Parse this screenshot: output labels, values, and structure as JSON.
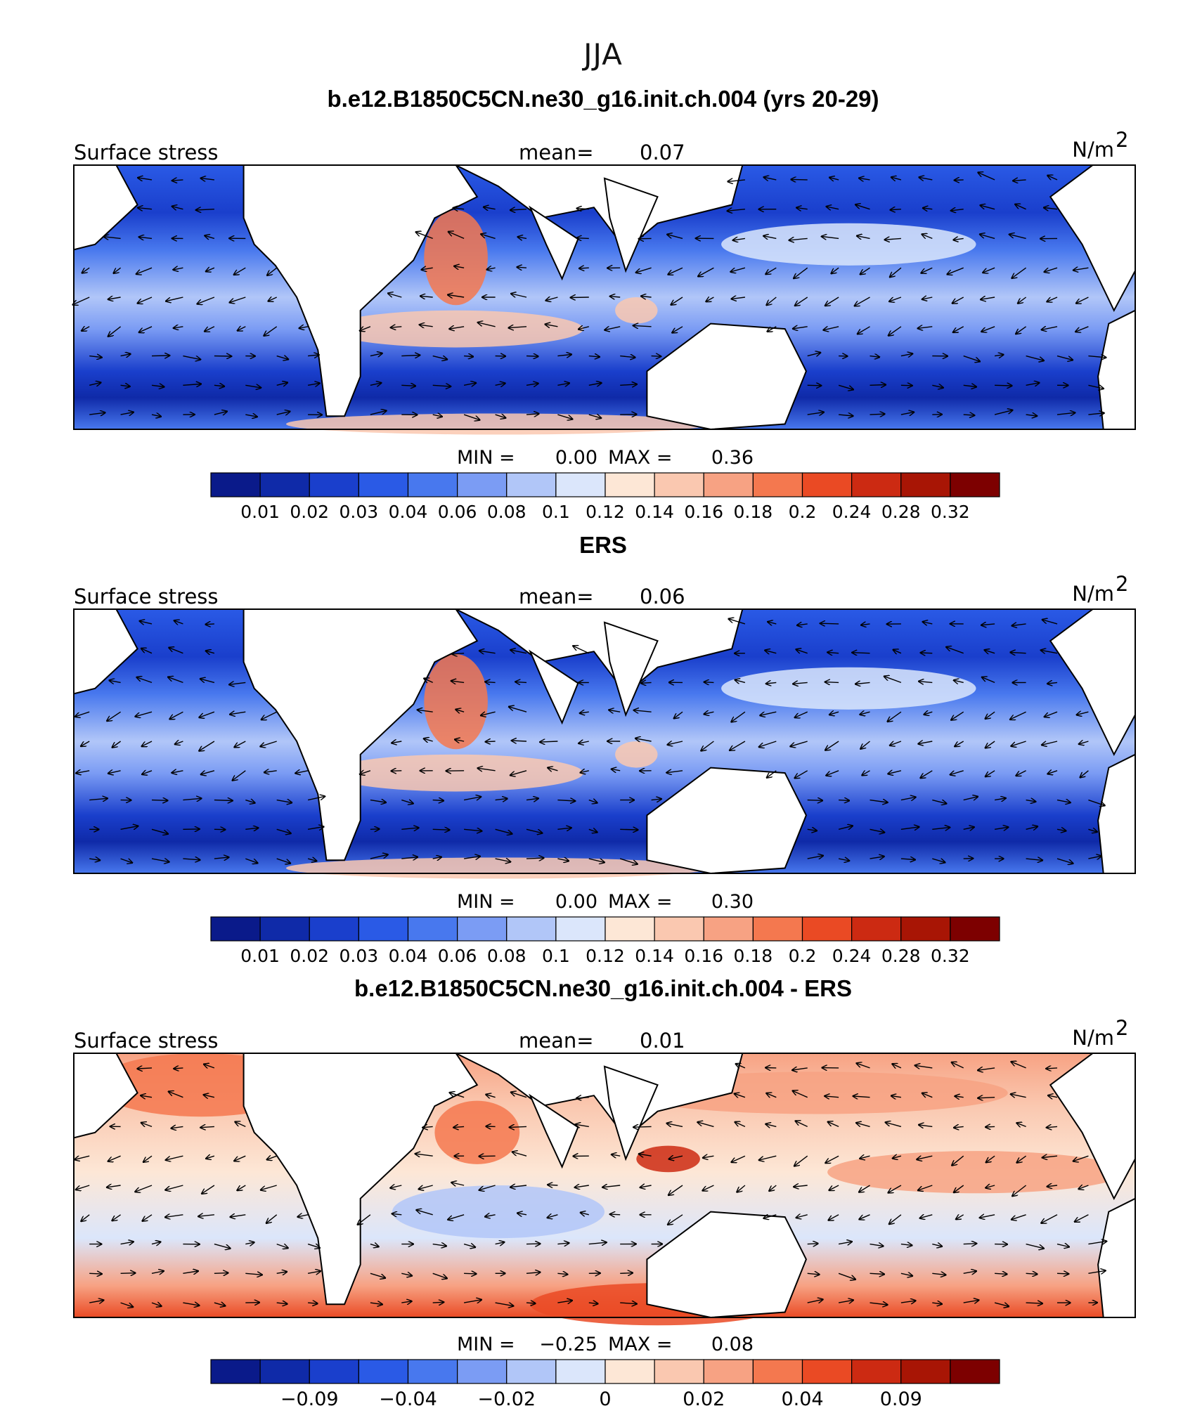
{
  "page_title": "JJA",
  "colors": {
    "scale": [
      "#0a1a8a",
      "#0f2aa8",
      "#1a3fcc",
      "#2a5ae6",
      "#4878ee",
      "#7b9cf4",
      "#b1c6f8",
      "#dbe6fb",
      "#fde7d6",
      "#fac8b0",
      "#f7a283",
      "#f4784f",
      "#ea4a24",
      "#cc2a12",
      "#a81505",
      "#7d0000"
    ],
    "land": "#ffffff",
    "coast": "#000000"
  },
  "panels": [
    {
      "title": "b.e12.B1850C5CN.ne30_g16.init.ch.004 (yrs 20-29)",
      "variable": "Surface stress",
      "mean_label": "mean=",
      "mean_value": "0.07",
      "units_base": "N/m",
      "units_sup": "2",
      "min_label": "MIN =",
      "min_value": "0.00",
      "max_label": "MAX =",
      "max_value": "0.36",
      "colorbar_ticks": [
        "0.01",
        "0.02",
        "0.03",
        "0.04",
        "0.06",
        "0.08",
        "0.1",
        "0.12",
        "0.14",
        "0.16",
        "0.18",
        "0.2",
        "0.24",
        "0.28",
        "0.32"
      ]
    },
    {
      "title": "ERS",
      "variable": "Surface stress",
      "mean_label": "mean=",
      "mean_value": "0.06",
      "units_base": "N/m",
      "units_sup": "2",
      "min_label": "MIN =",
      "min_value": "0.00",
      "max_label": "MAX =",
      "max_value": "0.30",
      "colorbar_ticks": [
        "0.01",
        "0.02",
        "0.03",
        "0.04",
        "0.06",
        "0.08",
        "0.1",
        "0.12",
        "0.14",
        "0.16",
        "0.18",
        "0.2",
        "0.24",
        "0.28",
        "0.32"
      ]
    },
    {
      "title": "b.e12.B1850C5CN.ne30_g16.init.ch.004 - ERS",
      "variable": "Surface stress",
      "mean_label": "mean=",
      "mean_value": "0.01",
      "units_base": "N/m",
      "units_sup": "2",
      "min_label": "MIN =",
      "min_value": "−0.25",
      "max_label": "MAX =",
      "max_value": "0.08",
      "colorbar_ticks": [
        "−0.09",
        "−0.04",
        "−0.02",
        "0",
        "0.02",
        "0.04",
        "0.09"
      ]
    }
  ]
}
